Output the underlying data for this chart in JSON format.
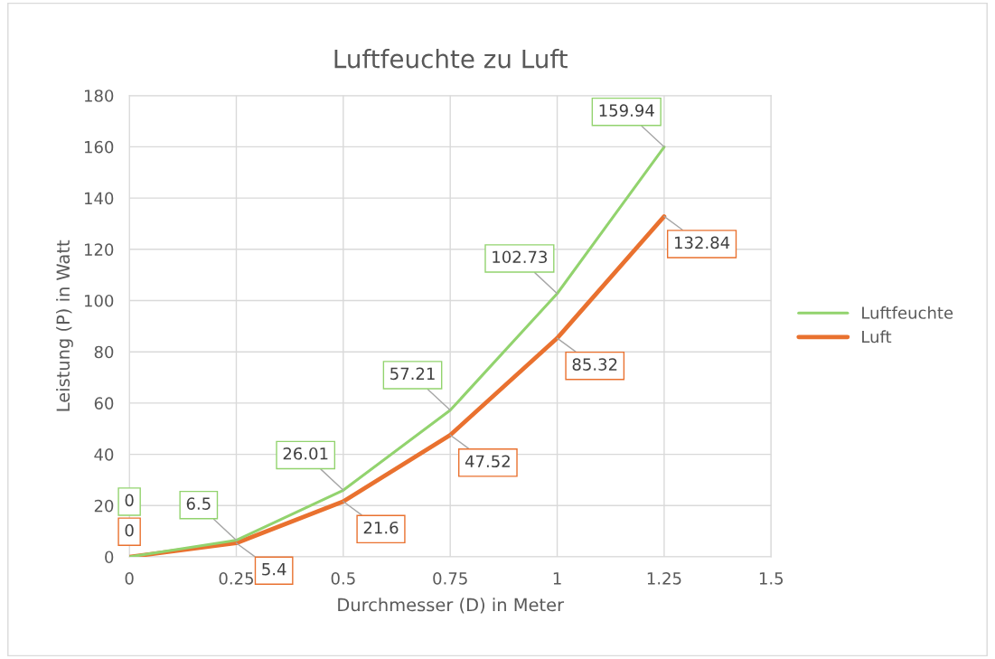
{
  "chart_data": {
    "type": "line",
    "title": "Luftfeuchte zu Luft",
    "xlabel": "Durchmesser (D) in Meter",
    "ylabel": "Leistung (P) in Watt",
    "x": [
      0,
      0.25,
      0.5,
      0.75,
      1,
      1.25
    ],
    "series": [
      {
        "name": "Luftfeuchte",
        "color": "#92d36e",
        "values": [
          0,
          6.5,
          26.01,
          57.21,
          102.73,
          159.94
        ]
      },
      {
        "name": "Luft",
        "color": "#e9712f",
        "values": [
          0,
          5.4,
          21.6,
          47.52,
          85.32,
          132.84
        ]
      }
    ],
    "xlim": [
      0,
      1.5
    ],
    "xticks": [
      0,
      0.25,
      0.5,
      0.75,
      1,
      1.25,
      1.5
    ],
    "ylim": [
      0,
      180
    ],
    "yticks": [
      0,
      20,
      40,
      60,
      80,
      100,
      120,
      140,
      160,
      180
    ],
    "grid": true,
    "legend": "right",
    "marker": "none",
    "line_style": "solid",
    "data_labels": true
  }
}
